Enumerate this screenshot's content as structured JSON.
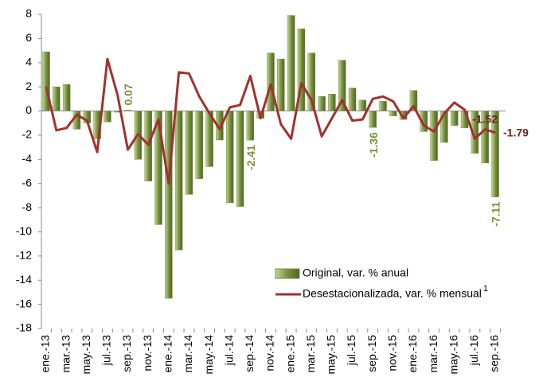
{
  "chart_data": {
    "type": "bar-line",
    "categories": [
      "ene.-13",
      null,
      "mar.-13",
      null,
      "may.-13",
      null,
      "jul.-13",
      null,
      "sep.-13",
      null,
      "nov.-13",
      null,
      "ene.-14",
      null,
      "mar.-14",
      null,
      "may.-14",
      null,
      "jul.-14",
      null,
      "sep.-14",
      null,
      "nov.-14",
      null,
      "ene.-15",
      null,
      "mar.-15",
      null,
      "may.-15",
      null,
      "jul.-15",
      null,
      "sep.-15",
      null,
      "nov.-15",
      null,
      "ene.-16",
      null,
      "mar.-16",
      null,
      "may.-16",
      null,
      "jul.-16",
      null,
      "sep.-16"
    ],
    "series": [
      {
        "name": "Original, var. % anual",
        "type": "bar",
        "color": "#77933c",
        "label_color": "#77933c",
        "values": [
          4.9,
          2.0,
          2.2,
          -1.5,
          -1.0,
          -2.3,
          -0.9,
          -0.1,
          0.07,
          -4.0,
          -5.8,
          -9.4,
          -15.5,
          -11.5,
          -6.9,
          -5.6,
          -4.6,
          -2.4,
          -7.6,
          -7.9,
          -2.41,
          -0.6,
          4.8,
          4.3,
          7.9,
          6.8,
          4.8,
          1.2,
          1.4,
          4.2,
          1.9,
          0.9,
          -1.36,
          0.8,
          -0.4,
          -0.7,
          1.7,
          -1.7,
          -4.1,
          -2.6,
          -1.2,
          -1.4,
          -3.5,
          -4.3,
          -7.11
        ],
        "value_labels": [
          null,
          null,
          null,
          null,
          null,
          null,
          null,
          null,
          "0.07",
          null,
          null,
          null,
          null,
          null,
          null,
          null,
          null,
          null,
          null,
          null,
          "-2.41",
          null,
          null,
          null,
          null,
          null,
          null,
          null,
          null,
          null,
          null,
          null,
          "-1.36",
          null,
          null,
          null,
          null,
          null,
          null,
          null,
          null,
          null,
          null,
          null,
          "-7.11"
        ]
      },
      {
        "name": "Desestacionalizada, var. % mensual",
        "name_superscript": "1",
        "type": "line",
        "color": "#a0322f",
        "label_color": "#6e2424",
        "values": [
          2.0,
          -1.6,
          -1.4,
          -0.3,
          -0.8,
          -3.4,
          4.3,
          1.3,
          -3.2,
          -1.9,
          -2.8,
          -0.7,
          -6.0,
          3.2,
          3.1,
          1.2,
          -0.2,
          -1.5,
          0.3,
          0.5,
          2.9,
          -0.6,
          2.2,
          -1.1,
          -2.3,
          2.3,
          0.9,
          -2.1,
          -0.6,
          0.9,
          -0.8,
          -0.7,
          1.0,
          1.2,
          0.8,
          -0.6,
          0.4,
          -1.2,
          -1.7,
          -0.2,
          0.7,
          0.1,
          -2.3,
          -1.52,
          -1.79
        ],
        "value_labels": [
          null,
          null,
          null,
          null,
          null,
          null,
          null,
          null,
          null,
          null,
          null,
          null,
          null,
          null,
          null,
          null,
          null,
          null,
          null,
          null,
          null,
          null,
          null,
          null,
          null,
          null,
          null,
          null,
          null,
          null,
          null,
          null,
          null,
          null,
          null,
          null,
          null,
          null,
          null,
          null,
          null,
          null,
          null,
          "-1.52",
          "-1.79"
        ]
      }
    ],
    "ylim": [
      -18,
      8
    ],
    "yticks": [
      -18,
      -16,
      -14,
      -12,
      -10,
      -8,
      -6,
      -4,
      -2,
      0,
      2,
      4,
      6,
      8
    ],
    "grid": false
  }
}
